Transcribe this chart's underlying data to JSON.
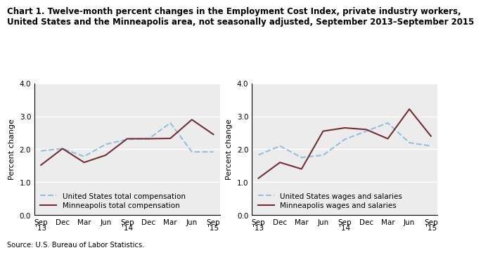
{
  "title_line1": "Chart 1. Twelve-month percent changes in the Employment Cost Index, private industry workers,",
  "title_line2": "United States and the Minneapolis area, not seasonally adjusted, September 2013–September 2015",
  "source": "Source: U.S. Bureau of Labor Statistics.",
  "x_labels": [
    "Sep\n'13",
    "Dec",
    "Mar",
    "Jun",
    "Sep\n'14",
    "Dec",
    "Mar",
    "Jun",
    "Sep\n'15"
  ],
  "ylim": [
    0.0,
    4.0
  ],
  "yticks": [
    0.0,
    1.0,
    2.0,
    3.0,
    4.0
  ],
  "ylabel": "Percent change",
  "chart1": {
    "us_total_comp": [
      1.95,
      2.02,
      1.78,
      2.15,
      2.3,
      2.32,
      2.8,
      1.92,
      1.92
    ],
    "minneapolis_total_comp": [
      1.52,
      2.02,
      1.6,
      1.82,
      2.32,
      2.32,
      2.33,
      2.9,
      2.45
    ]
  },
  "chart2": {
    "us_wages_salaries": [
      1.83,
      2.1,
      1.75,
      1.82,
      2.3,
      2.55,
      2.8,
      2.2,
      2.1
    ],
    "minneapolis_wages_salaries": [
      1.12,
      1.6,
      1.4,
      2.55,
      2.65,
      2.6,
      2.32,
      3.22,
      2.4
    ]
  },
  "us_color": "#92c0dc",
  "mpls_color": "#722F37",
  "background_color": "#ececec",
  "title_fontsize": 8.5,
  "axis_label_fontsize": 8,
  "tick_fontsize": 7.5,
  "legend_fontsize": 7.5
}
